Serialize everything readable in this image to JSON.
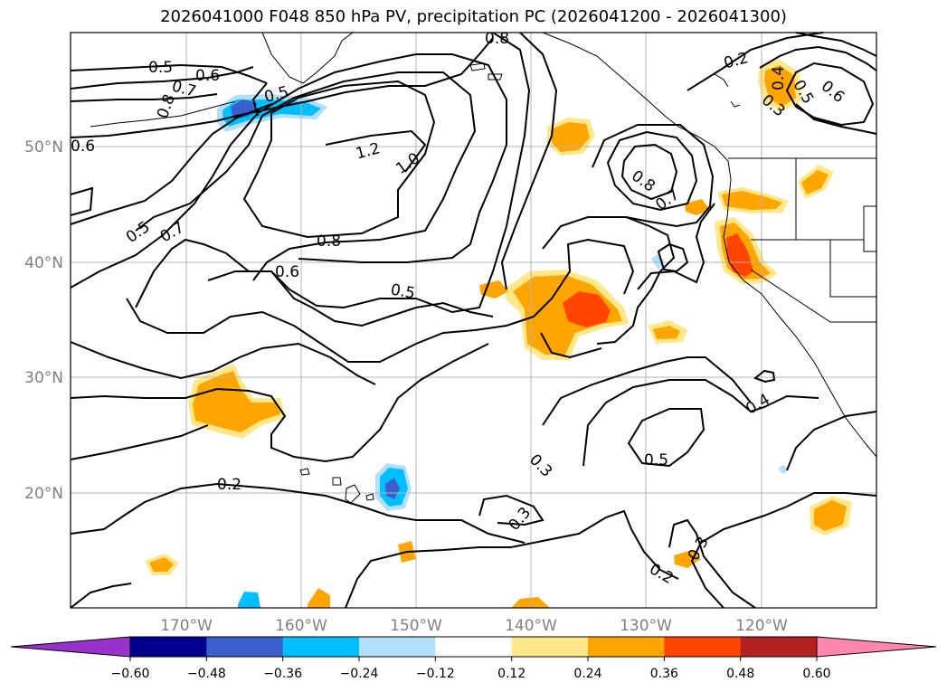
{
  "title": "2026041000 F048 850 hPa PV, precipitation PC (2026041200 - 2026041300)",
  "lat_labels": [
    "50°N",
    "40°N",
    "30°N",
    "20°N"
  ],
  "lon_labels": [
    "170°W",
    "160°W",
    "150°W",
    "140°W",
    "130°W",
    "120°W"
  ],
  "colorbar": {
    "ticks": [
      "−0.60",
      "−0.48",
      "−0.36",
      "−0.24",
      "−0.12",
      "0.12",
      "0.24",
      "0.36",
      "0.48",
      "0.60"
    ],
    "colors": [
      "#9932cc",
      "#00008b",
      "#3a5fcd",
      "#00bfff",
      "#b0e0fa",
      "#ffffff",
      "#ffe78a",
      "#ffa500",
      "#ff4500",
      "#b22222",
      "#ff87ad"
    ]
  },
  "contour_labels": [
    {
      "text": "0.5"
    },
    {
      "text": "0.6"
    },
    {
      "text": "0.7"
    },
    {
      "text": "0.8"
    },
    {
      "text": "0.5"
    },
    {
      "text": "0.6"
    },
    {
      "text": "1.2"
    },
    {
      "text": "1.0"
    },
    {
      "text": "0.8"
    },
    {
      "text": "0.5"
    },
    {
      "text": "0.7"
    },
    {
      "text": "0.8"
    },
    {
      "text": "0.6"
    },
    {
      "text": "0.5"
    },
    {
      "text": "0.8"
    },
    {
      "text": "0.7"
    },
    {
      "text": "0.2"
    },
    {
      "text": "0.4"
    },
    {
      "text": "0.5"
    },
    {
      "text": "0.6"
    },
    {
      "text": "0.3"
    },
    {
      "text": "0.4"
    },
    {
      "text": "0.5"
    },
    {
      "text": "0.3"
    },
    {
      "text": "0.3"
    },
    {
      "text": "0.2"
    },
    {
      "text": "0.3"
    },
    {
      "text": "0.2"
    }
  ]
}
